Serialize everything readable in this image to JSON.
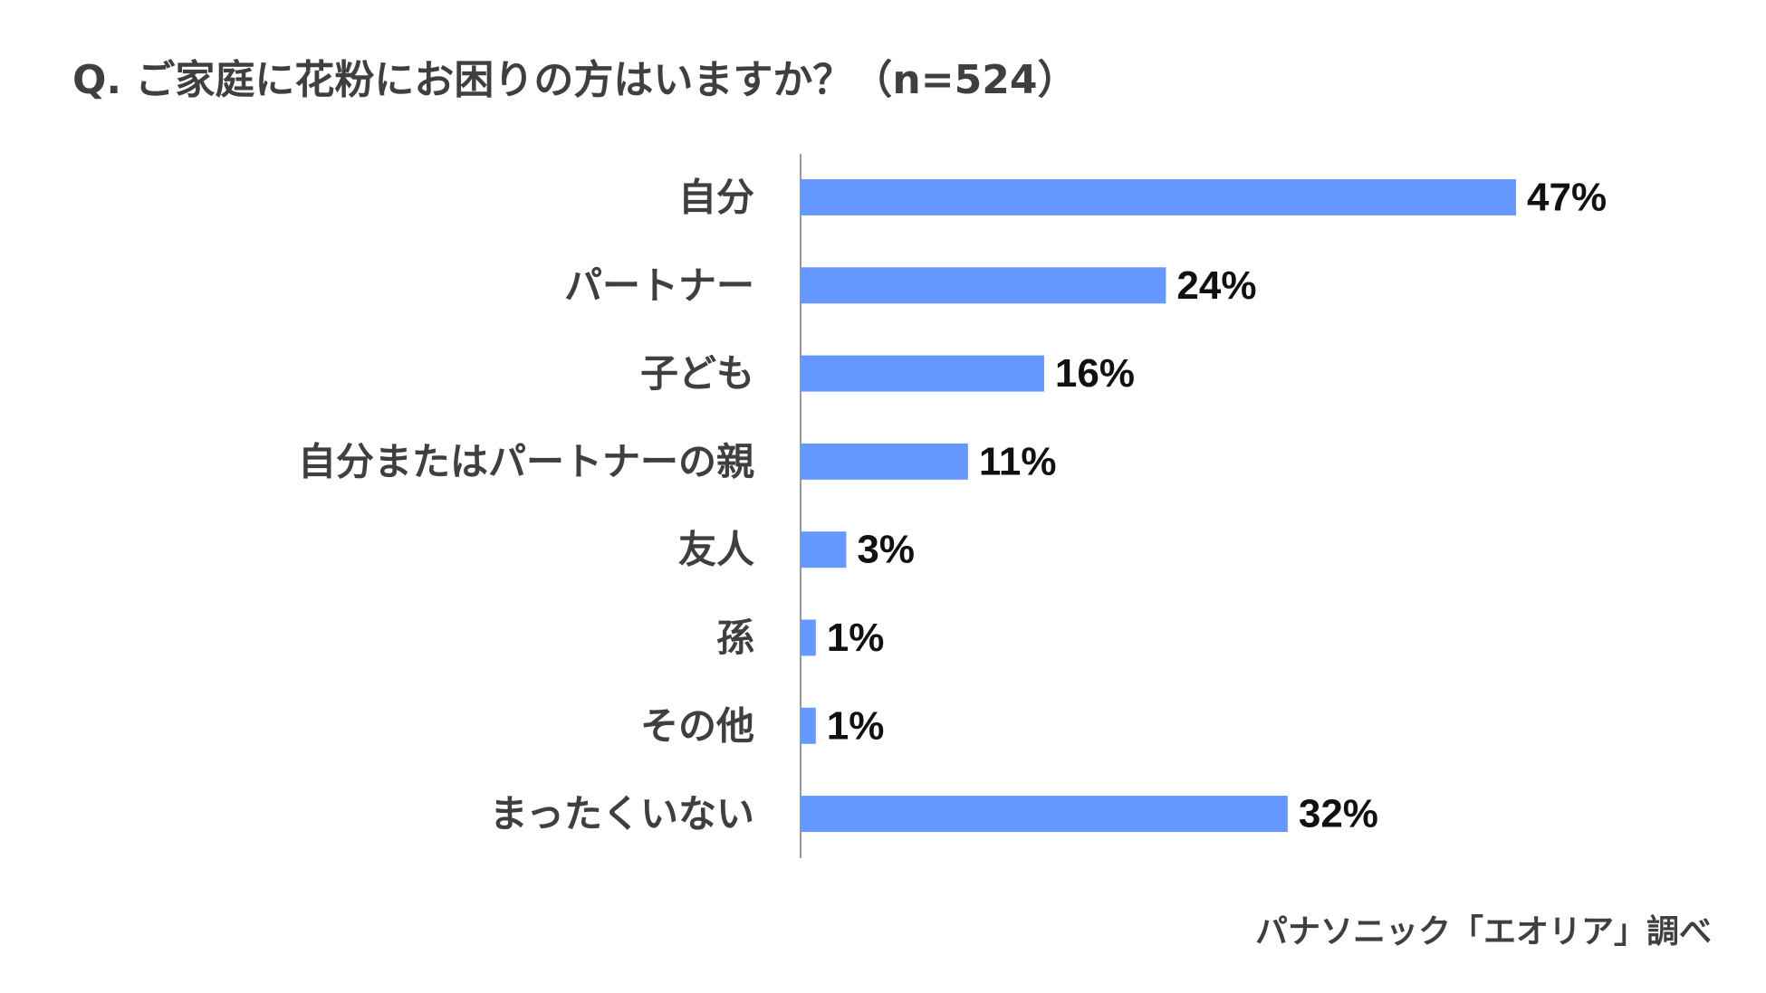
{
  "header": {
    "title": "Q. ご家庭に花粉にお困りの方はいますか？（n=524）"
  },
  "footer": {
    "source": "パナソニック「エオリア」調べ"
  },
  "chart_data": {
    "type": "bar",
    "orientation": "horizontal",
    "title": "Q. ご家庭に花粉にお困りの方はいますか？（n=524）",
    "categories": [
      "自分",
      "パートナー",
      "子ども",
      "自分またはパートナーの親",
      "友人",
      "孫",
      "その他",
      "まったくいない"
    ],
    "values": [
      47,
      24,
      16,
      11,
      3,
      1,
      1,
      32
    ],
    "value_labels": [
      "47%",
      "24%",
      "16%",
      "11%",
      "3%",
      "1%",
      "1%",
      "32%"
    ],
    "unit": "%",
    "xlim": [
      0,
      50
    ],
    "grid": false,
    "legend": "none",
    "bar_color": "#6699ff",
    "axis_color": "#999999"
  }
}
